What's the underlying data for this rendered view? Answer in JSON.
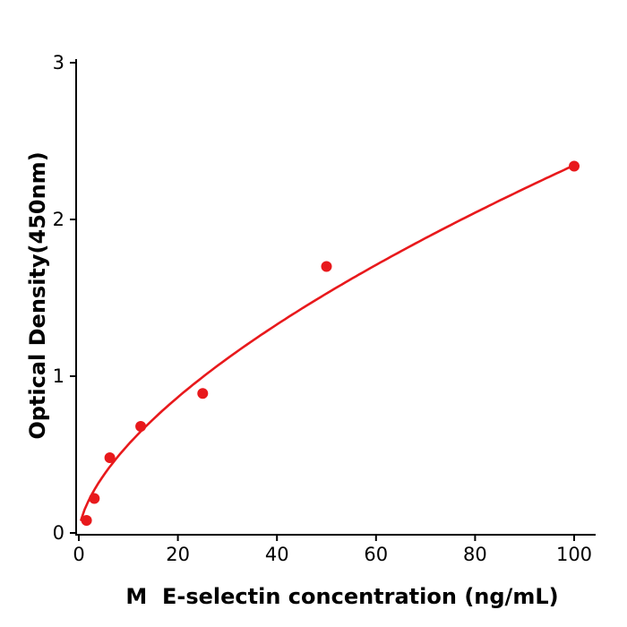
{
  "chart_data": {
    "type": "scatter",
    "title": "",
    "xlabel": "M  E-selectin concentration (ng/mL)",
    "ylabel": "Optical Density(450nm)",
    "x": [
      1.56,
      3.125,
      6.25,
      12.5,
      25,
      50,
      100
    ],
    "y": [
      0.08,
      0.22,
      0.48,
      0.68,
      0.89,
      1.7,
      2.34
    ],
    "xlim": [
      0,
      104
    ],
    "ylim": [
      0,
      3
    ],
    "x_ticks": [
      0,
      20,
      40,
      60,
      80,
      100
    ],
    "y_ticks": [
      0,
      1,
      2,
      3
    ],
    "grid": false,
    "legend": "none",
    "marker_color": "#e8191c",
    "curve_color": "#e8191c",
    "axis_color": "#000000",
    "fit": {
      "type": "power",
      "k": 0.1356,
      "p": 0.619,
      "x_start": 0.45,
      "x_end": 100
    }
  }
}
